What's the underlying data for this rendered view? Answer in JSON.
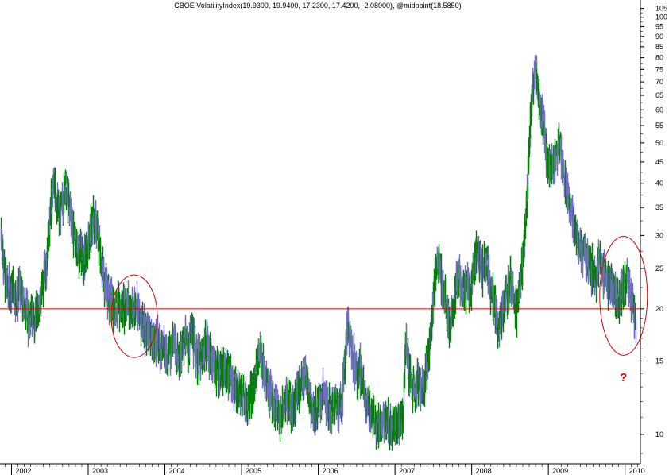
{
  "chart_data": {
    "type": "bar",
    "subtype": "price-bars",
    "title": "CBOE VolatilityIndex(19.9300, 19.9400, 17.2300, 17.4200, -2.08000), @midpoint(18.5850)",
    "last_bar": {
      "open": 19.93,
      "high": 19.94,
      "low": 17.23,
      "close": 17.42,
      "change": -2.08
    },
    "midpoint": 18.585,
    "y_scale": "log",
    "ylim": [
      8.5,
      110
    ],
    "y_ticks": [
      10,
      15,
      20,
      25,
      30,
      35,
      40,
      45,
      50,
      55,
      60,
      65,
      70,
      75,
      80,
      85,
      90,
      95,
      100,
      105
    ],
    "x_ticks": [
      "2002",
      "2003",
      "2004",
      "2005",
      "2006",
      "2007",
      "2008",
      "2009",
      "2010"
    ],
    "x_range": [
      2001.85,
      2010.2
    ],
    "up_color": "#008000",
    "down_color": "#7070c0",
    "reference_line": {
      "value": 20,
      "color": "#e00000"
    },
    "series": [
      {
        "values": [
          [
            2001.86,
            31
          ],
          [
            2001.9,
            25
          ],
          [
            2001.94,
            23
          ],
          [
            2001.98,
            22
          ],
          [
            2002.02,
            22.5
          ],
          [
            2002.06,
            21
          ],
          [
            2002.1,
            22.5
          ],
          [
            2002.14,
            21
          ],
          [
            2002.18,
            20.5
          ],
          [
            2002.22,
            18.5
          ],
          [
            2002.26,
            19.5
          ],
          [
            2002.3,
            19
          ],
          [
            2002.34,
            20
          ],
          [
            2002.38,
            21.5
          ],
          [
            2002.42,
            24
          ],
          [
            2002.46,
            27
          ],
          [
            2002.5,
            33
          ],
          [
            2002.54,
            40
          ],
          [
            2002.58,
            37
          ],
          [
            2002.62,
            33
          ],
          [
            2002.66,
            36
          ],
          [
            2002.7,
            40
          ],
          [
            2002.74,
            36
          ],
          [
            2002.78,
            33
          ],
          [
            2002.82,
            30
          ],
          [
            2002.86,
            27
          ],
          [
            2002.9,
            28
          ],
          [
            2002.94,
            26
          ],
          [
            2002.98,
            28
          ],
          [
            2003.02,
            30
          ],
          [
            2003.06,
            33
          ],
          [
            2003.1,
            32
          ],
          [
            2003.14,
            29
          ],
          [
            2003.18,
            25
          ],
          [
            2003.22,
            23
          ],
          [
            2003.26,
            21.5
          ],
          [
            2003.3,
            21
          ],
          [
            2003.34,
            20
          ],
          [
            2003.38,
            20.5
          ],
          [
            2003.42,
            20
          ],
          [
            2003.46,
            20.5
          ],
          [
            2003.5,
            21
          ],
          [
            2003.54,
            20
          ],
          [
            2003.58,
            19.5
          ],
          [
            2003.62,
            21
          ],
          [
            2003.66,
            19.5
          ],
          [
            2003.7,
            18.5
          ],
          [
            2003.74,
            17.5
          ],
          [
            2003.78,
            18
          ],
          [
            2003.82,
            17
          ],
          [
            2003.86,
            16.5
          ],
          [
            2003.9,
            17
          ],
          [
            2003.94,
            16
          ],
          [
            2003.98,
            16.5
          ],
          [
            2004.02,
            15.5
          ],
          [
            2004.06,
            16
          ],
          [
            2004.1,
            17
          ],
          [
            2004.14,
            16
          ],
          [
            2004.18,
            15.5
          ],
          [
            2004.22,
            16.5
          ],
          [
            2004.26,
            17
          ],
          [
            2004.3,
            16
          ],
          [
            2004.34,
            18
          ],
          [
            2004.38,
            16.5
          ],
          [
            2004.42,
            15.5
          ],
          [
            2004.46,
            15
          ],
          [
            2004.5,
            15.5
          ],
          [
            2004.54,
            17
          ],
          [
            2004.58,
            15.5
          ],
          [
            2004.62,
            15
          ],
          [
            2004.66,
            14.5
          ],
          [
            2004.7,
            14.5
          ],
          [
            2004.74,
            14
          ],
          [
            2004.78,
            14.5
          ],
          [
            2004.82,
            14
          ],
          [
            2004.86,
            13.5
          ],
          [
            2004.9,
            13
          ],
          [
            2004.94,
            13
          ],
          [
            2004.98,
            12.5
          ],
          [
            2005.02,
            12.5
          ],
          [
            2005.06,
            12
          ],
          [
            2005.1,
            12.5
          ],
          [
            2005.14,
            12.5
          ],
          [
            2005.18,
            14
          ],
          [
            2005.22,
            16
          ],
          [
            2005.26,
            15
          ],
          [
            2005.3,
            14
          ],
          [
            2005.34,
            13
          ],
          [
            2005.38,
            12.5
          ],
          [
            2005.42,
            12
          ],
          [
            2005.46,
            11.5
          ],
          [
            2005.5,
            11
          ],
          [
            2005.54,
            11.5
          ],
          [
            2005.58,
            12.5
          ],
          [
            2005.62,
            12
          ],
          [
            2005.66,
            11.5
          ],
          [
            2005.7,
            12
          ],
          [
            2005.74,
            13
          ],
          [
            2005.78,
            13.5
          ],
          [
            2005.82,
            14
          ],
          [
            2005.86,
            13
          ],
          [
            2005.9,
            12
          ],
          [
            2005.94,
            11.5
          ],
          [
            2005.98,
            11.5
          ],
          [
            2006.02,
            12
          ],
          [
            2006.06,
            12.5
          ],
          [
            2006.1,
            12
          ],
          [
            2006.14,
            11.5
          ],
          [
            2006.18,
            11.5
          ],
          [
            2006.22,
            12
          ],
          [
            2006.26,
            11.5
          ],
          [
            2006.3,
            12
          ],
          [
            2006.34,
            15
          ],
          [
            2006.38,
            18
          ],
          [
            2006.42,
            17
          ],
          [
            2006.46,
            15
          ],
          [
            2006.5,
            14
          ],
          [
            2006.54,
            14.5
          ],
          [
            2006.58,
            13
          ],
          [
            2006.62,
            12
          ],
          [
            2006.66,
            11.5
          ],
          [
            2006.7,
            11
          ],
          [
            2006.74,
            11
          ],
          [
            2006.78,
            10.5
          ],
          [
            2006.82,
            11
          ],
          [
            2006.86,
            10.5
          ],
          [
            2006.9,
            11
          ],
          [
            2006.94,
            10.5
          ],
          [
            2006.98,
            10.5
          ],
          [
            2007.02,
            10.5
          ],
          [
            2007.06,
            11
          ],
          [
            2007.1,
            11
          ],
          [
            2007.14,
            17
          ],
          [
            2007.18,
            14
          ],
          [
            2007.22,
            13
          ],
          [
            2007.26,
            13
          ],
          [
            2007.3,
            13.5
          ],
          [
            2007.34,
            13
          ],
          [
            2007.38,
            13.5
          ],
          [
            2007.42,
            15
          ],
          [
            2007.46,
            17
          ],
          [
            2007.5,
            22
          ],
          [
            2007.54,
            26
          ],
          [
            2007.58,
            25
          ],
          [
            2007.62,
            23
          ],
          [
            2007.66,
            21
          ],
          [
            2007.7,
            18
          ],
          [
            2007.74,
            19
          ],
          [
            2007.78,
            22
          ],
          [
            2007.82,
            24
          ],
          [
            2007.86,
            23
          ],
          [
            2007.9,
            22
          ],
          [
            2007.94,
            23
          ],
          [
            2007.98,
            22
          ],
          [
            2008.02,
            25
          ],
          [
            2008.06,
            28
          ],
          [
            2008.1,
            26
          ],
          [
            2008.14,
            25
          ],
          [
            2008.18,
            27
          ],
          [
            2008.22,
            24
          ],
          [
            2008.26,
            22
          ],
          [
            2008.3,
            20
          ],
          [
            2008.34,
            18
          ],
          [
            2008.38,
            19
          ],
          [
            2008.42,
            21
          ],
          [
            2008.46,
            22
          ],
          [
            2008.5,
            24
          ],
          [
            2008.54,
            22
          ],
          [
            2008.58,
            20
          ],
          [
            2008.62,
            22
          ],
          [
            2008.66,
            26
          ],
          [
            2008.7,
            32
          ],
          [
            2008.74,
            45
          ],
          [
            2008.78,
            65
          ],
          [
            2008.82,
            75
          ],
          [
            2008.86,
            68
          ],
          [
            2008.9,
            58
          ],
          [
            2008.94,
            55
          ],
          [
            2008.98,
            45
          ],
          [
            2009.02,
            43
          ],
          [
            2009.06,
            45
          ],
          [
            2009.1,
            48
          ],
          [
            2009.14,
            50
          ],
          [
            2009.18,
            44
          ],
          [
            2009.22,
            40
          ],
          [
            2009.26,
            37
          ],
          [
            2009.3,
            33
          ],
          [
            2009.34,
            32
          ],
          [
            2009.38,
            30
          ],
          [
            2009.42,
            28
          ],
          [
            2009.46,
            27
          ],
          [
            2009.5,
            26
          ],
          [
            2009.54,
            25
          ],
          [
            2009.58,
            25
          ],
          [
            2009.62,
            24
          ],
          [
            2009.66,
            26
          ],
          [
            2009.7,
            25
          ],
          [
            2009.74,
            24
          ],
          [
            2009.78,
            23
          ],
          [
            2009.82,
            23
          ],
          [
            2009.86,
            22
          ],
          [
            2009.9,
            21
          ],
          [
            2009.94,
            22
          ],
          [
            2009.98,
            23
          ],
          [
            2010.02,
            24
          ],
          [
            2010.06,
            22
          ],
          [
            2010.1,
            20
          ],
          [
            2010.14,
            18.5
          ]
        ]
      }
    ],
    "annotations": [
      {
        "type": "ellipse",
        "color": "#e00000",
        "cx": 2003.6,
        "cy": 19.2
      },
      {
        "type": "ellipse",
        "color": "#e00000",
        "cx": 2009.98,
        "cy": 21.5
      },
      {
        "type": "text",
        "text": "?",
        "color": "#e00000",
        "x": 2009.98,
        "y": 13.4
      }
    ]
  }
}
